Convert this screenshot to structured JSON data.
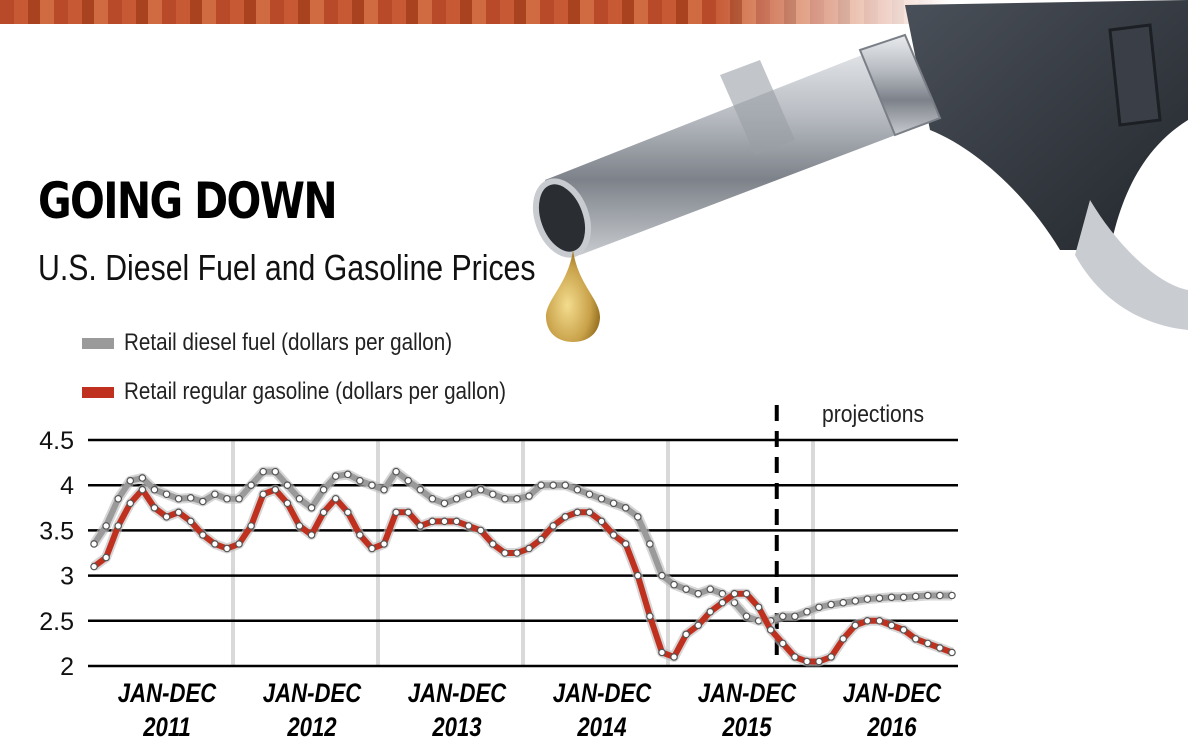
{
  "header": {
    "title": "GOING DOWN",
    "subtitle": "U.S. Diesel Fuel and Gasoline Prices"
  },
  "colors": {
    "diesel": "#9a9a9a",
    "gasoline": "#c0301e",
    "band": "#b84a2a",
    "nozzle": "#8a8f96",
    "handle": "#2f343c",
    "drop": "#c9a24a"
  },
  "legend": {
    "diesel_label": "Retail diesel fuel (dollars per gallon)",
    "gasoline_label": "Retail regular gasoline (dollars per gallon)"
  },
  "projections_label": "projections",
  "chart_data": {
    "type": "line",
    "ylim": [
      2,
      4.5
    ],
    "yticks": [
      "4.5",
      "4",
      "3.5",
      "3",
      "2.5",
      "2"
    ],
    "years": [
      {
        "line1": "JAN-DEC",
        "line2": "2011"
      },
      {
        "line1": "JAN-DEC",
        "line2": "2012"
      },
      {
        "line1": "JAN-DEC",
        "line2": "2013"
      },
      {
        "line1": "JAN-DEC",
        "line2": "2014"
      },
      {
        "line1": "JAN-DEC",
        "line2": "2015"
      },
      {
        "line1": "JAN-DEC",
        "line2": "2016"
      }
    ],
    "x_start": "2011-01",
    "x_end": "2016-12",
    "projection_start": "2015-10",
    "series": [
      {
        "name": "Retail diesel fuel (dollars per gallon)",
        "key": "diesel",
        "values": [
          3.35,
          3.55,
          3.85,
          4.05,
          4.08,
          3.95,
          3.9,
          3.85,
          3.86,
          3.82,
          3.9,
          3.85,
          3.85,
          4.0,
          4.15,
          4.15,
          4.0,
          3.85,
          3.75,
          3.95,
          4.1,
          4.12,
          4.05,
          4.0,
          3.95,
          4.15,
          4.05,
          3.95,
          3.85,
          3.8,
          3.85,
          3.9,
          3.95,
          3.9,
          3.85,
          3.85,
          3.88,
          4.0,
          4.0,
          4.0,
          3.95,
          3.9,
          3.85,
          3.8,
          3.75,
          3.65,
          3.35,
          3.0,
          2.9,
          2.85,
          2.8,
          2.85,
          2.8,
          2.7,
          2.55,
          2.5,
          2.5,
          2.55,
          2.55,
          2.6,
          2.65,
          2.68,
          2.7,
          2.72,
          2.74,
          2.75,
          2.76,
          2.76,
          2.77,
          2.78,
          2.78,
          2.78
        ]
      },
      {
        "name": "Retail regular gasoline (dollars per gallon)",
        "key": "gasoline",
        "values": [
          3.1,
          3.2,
          3.55,
          3.8,
          3.95,
          3.75,
          3.65,
          3.7,
          3.6,
          3.45,
          3.35,
          3.3,
          3.35,
          3.55,
          3.9,
          3.95,
          3.8,
          3.55,
          3.45,
          3.7,
          3.85,
          3.7,
          3.45,
          3.3,
          3.35,
          3.7,
          3.7,
          3.55,
          3.6,
          3.6,
          3.6,
          3.55,
          3.5,
          3.35,
          3.25,
          3.25,
          3.3,
          3.4,
          3.55,
          3.65,
          3.7,
          3.7,
          3.6,
          3.45,
          3.35,
          3.0,
          2.55,
          2.15,
          2.1,
          2.35,
          2.45,
          2.6,
          2.7,
          2.8,
          2.8,
          2.65,
          2.4,
          2.25,
          2.1,
          2.05,
          2.05,
          2.1,
          2.3,
          2.45,
          2.5,
          2.5,
          2.45,
          2.4,
          2.3,
          2.25,
          2.2,
          2.15
        ]
      }
    ]
  }
}
